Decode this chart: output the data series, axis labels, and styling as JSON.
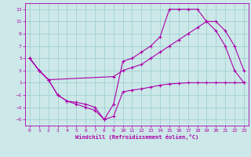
{
  "xlabel": "Windchill (Refroidissement éolien,°C)",
  "bg_color": "#cce8e8",
  "grid_color": "#99cccc",
  "line_color": "#aa00aa",
  "xlim": [
    -0.5,
    23.5
  ],
  "ylim": [
    -6,
    14
  ],
  "yticks": [
    -5,
    -3,
    -1,
    1,
    3,
    5,
    7,
    9,
    11,
    13
  ],
  "xticks": [
    0,
    1,
    2,
    3,
    4,
    5,
    6,
    7,
    8,
    9,
    10,
    11,
    12,
    13,
    14,
    15,
    16,
    17,
    18,
    19,
    20,
    21,
    22,
    23
  ],
  "line1_x": [
    0,
    1,
    2,
    3,
    4,
    5,
    6,
    7,
    8,
    9,
    10,
    11,
    12,
    13,
    14,
    15,
    16,
    17,
    18,
    19,
    20,
    21,
    22,
    23
  ],
  "line1_y": [
    5,
    3,
    1.5,
    -1,
    -2,
    -2.5,
    -3,
    -3.5,
    -5,
    -4.5,
    -0.5,
    -0.2,
    0,
    0.3,
    0.6,
    0.8,
    0.9,
    1,
    1,
    1,
    1,
    1,
    1,
    1
  ],
  "line2_x": [
    0,
    1,
    2,
    3,
    4,
    5,
    6,
    7,
    8,
    9,
    10,
    11,
    12,
    13,
    14,
    15,
    16,
    17,
    18,
    19,
    20,
    21,
    22,
    23
  ],
  "line2_y": [
    5,
    3,
    1.5,
    -1,
    -2,
    -2.2,
    -2.5,
    -3,
    -5,
    -2.5,
    4.5,
    5,
    6,
    7,
    8.5,
    13,
    13,
    13,
    13,
    11,
    9.5,
    7,
    3,
    1
  ],
  "line3_x": [
    0,
    1,
    2,
    9,
    10,
    11,
    12,
    13,
    14,
    15,
    16,
    17,
    18,
    19,
    20,
    21,
    22,
    23
  ],
  "line3_y": [
    5,
    3,
    1.5,
    2,
    3,
    3.5,
    4,
    5,
    6,
    7,
    8,
    9,
    10,
    11,
    11,
    9.5,
    7,
    3
  ]
}
